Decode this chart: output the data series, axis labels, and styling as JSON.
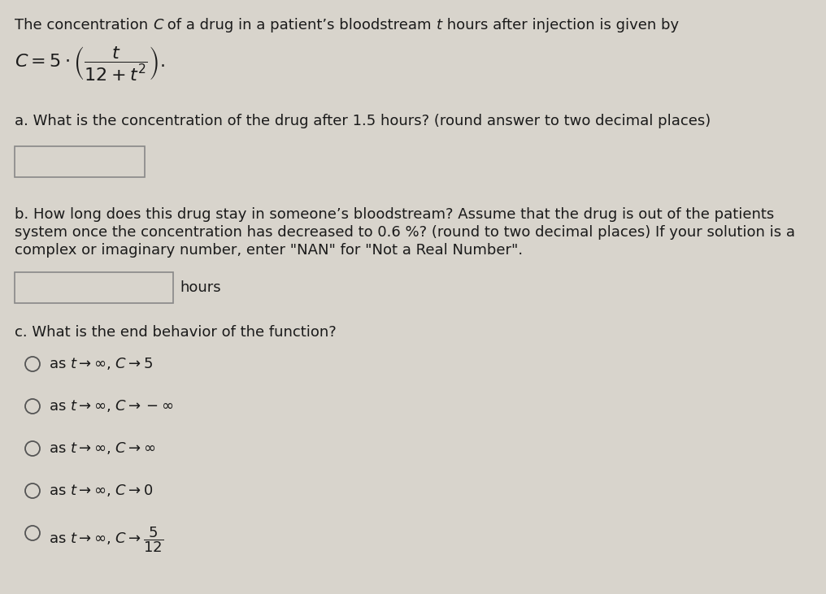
{
  "bg_color": "#d8d4cc",
  "text_color": "#1a1a1a",
  "font_size_body": 13.0,
  "box_color": "#d8d4cc",
  "box_edge_color": "#888888",
  "line1_plain": "The concentration ",
  "line1_italic_C": "C",
  "line1_mid": " of a drug in a patient’s bloodstream ",
  "line1_italic_t": "t",
  "line1_end": " hours after injection is given by",
  "part_a": "a. What is the concentration of the drug after 1.5 hours? (round answer to two decimal places)",
  "part_b_line1": "b. How long does this drug stay in someone’s bloodstream? Assume that the drug is out of the patients",
  "part_b_line2": "system once the concentration has decreased to 0.6 %? (round to two decimal places) If your solution is a",
  "part_b_line3": "complex or imaginary number, enter \"NAN\" for \"Not a Real Number\".",
  "hours_label": "hours",
  "part_c": "c. What is the end behavior of the function?",
  "radio_labels": [
    "as t → ∞, C → 5",
    "as t → ∞, C → − ∞",
    "as t → ∞, C → ∞",
    "as t → ∞, C → 0",
    "as t → ∞, C → 5/12_frac"
  ]
}
